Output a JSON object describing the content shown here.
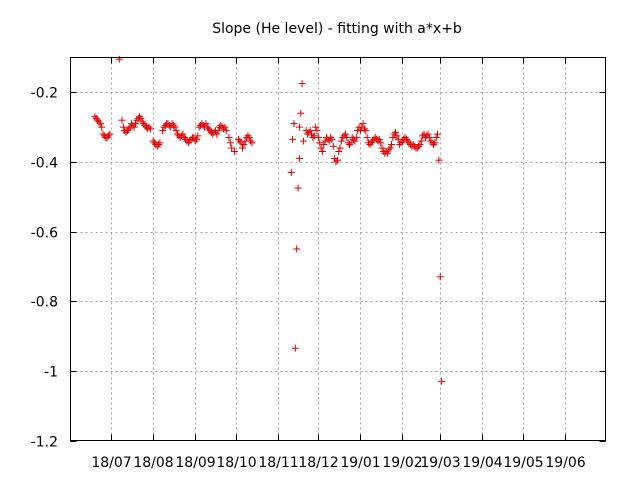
{
  "chart_data": {
    "type": "scatter",
    "title": "Slope (He level) - fitting with a*x+b",
    "xlabel": "",
    "ylabel": "",
    "x_unit": "month",
    "xlim": [
      "2018-06-01",
      "2019-07-01"
    ],
    "ylim": [
      -1.2,
      -0.1
    ],
    "x_ticks": [
      {
        "date": "2018-07-01",
        "label": "18/07"
      },
      {
        "date": "2018-08-01",
        "label": "18/08"
      },
      {
        "date": "2018-09-01",
        "label": "18/09"
      },
      {
        "date": "2018-10-01",
        "label": "18/10"
      },
      {
        "date": "2018-11-01",
        "label": "18/11"
      },
      {
        "date": "2018-12-01",
        "label": "18/12"
      },
      {
        "date": "2019-01-01",
        "label": "19/01"
      },
      {
        "date": "2019-02-01",
        "label": "19/02"
      },
      {
        "date": "2019-03-01",
        "label": "19/03"
      },
      {
        "date": "2019-04-01",
        "label": "19/04"
      },
      {
        "date": "2019-05-01",
        "label": "19/05"
      },
      {
        "date": "2019-06-01",
        "label": "19/06"
      }
    ],
    "y_ticks": [
      {
        "value": -1.2,
        "label": "-1.2"
      },
      {
        "value": -1.0,
        "label": "-1"
      },
      {
        "value": -0.8,
        "label": "-0.8"
      },
      {
        "value": -0.6,
        "label": "-0.6"
      },
      {
        "value": -0.4,
        "label": "-0.4"
      },
      {
        "value": -0.2,
        "label": "-0.2"
      }
    ],
    "grid": true,
    "series": [
      {
        "color": "#e00000",
        "marker": "plus",
        "points": [
          {
            "x": "2018-06-19",
            "y": -0.27
          },
          {
            "x": "2018-06-20",
            "y": -0.275
          },
          {
            "x": "2018-06-21",
            "y": -0.28
          },
          {
            "x": "2018-06-22",
            "y": -0.285
          },
          {
            "x": "2018-06-23",
            "y": -0.29
          },
          {
            "x": "2018-06-24",
            "y": -0.3
          },
          {
            "x": "2018-06-25",
            "y": -0.32
          },
          {
            "x": "2018-06-26",
            "y": -0.325
          },
          {
            "x": "2018-06-27",
            "y": -0.33
          },
          {
            "x": "2018-06-28",
            "y": -0.33
          },
          {
            "x": "2018-06-29",
            "y": -0.325
          },
          {
            "x": "2018-06-30",
            "y": -0.32
          },
          {
            "x": "2018-07-07",
            "y": -0.105
          },
          {
            "x": "2018-07-09",
            "y": -0.28
          },
          {
            "x": "2018-07-10",
            "y": -0.3
          },
          {
            "x": "2018-07-11",
            "y": -0.31
          },
          {
            "x": "2018-07-12",
            "y": -0.315
          },
          {
            "x": "2018-07-13",
            "y": -0.31
          },
          {
            "x": "2018-07-14",
            "y": -0.305
          },
          {
            "x": "2018-07-15",
            "y": -0.3
          },
          {
            "x": "2018-07-16",
            "y": -0.29
          },
          {
            "x": "2018-07-17",
            "y": -0.295
          },
          {
            "x": "2018-07-18",
            "y": -0.3
          },
          {
            "x": "2018-07-19",
            "y": -0.29
          },
          {
            "x": "2018-07-20",
            "y": -0.28
          },
          {
            "x": "2018-07-21",
            "y": -0.275
          },
          {
            "x": "2018-07-22",
            "y": -0.27
          },
          {
            "x": "2018-07-23",
            "y": -0.275
          },
          {
            "x": "2018-07-24",
            "y": -0.285
          },
          {
            "x": "2018-07-25",
            "y": -0.29
          },
          {
            "x": "2018-07-26",
            "y": -0.295
          },
          {
            "x": "2018-07-27",
            "y": -0.3
          },
          {
            "x": "2018-07-28",
            "y": -0.305
          },
          {
            "x": "2018-07-29",
            "y": -0.3
          },
          {
            "x": "2018-07-30",
            "y": -0.305
          },
          {
            "x": "2018-08-01",
            "y": -0.34
          },
          {
            "x": "2018-08-02",
            "y": -0.345
          },
          {
            "x": "2018-08-03",
            "y": -0.35
          },
          {
            "x": "2018-08-04",
            "y": -0.355
          },
          {
            "x": "2018-08-05",
            "y": -0.35
          },
          {
            "x": "2018-08-06",
            "y": -0.345
          },
          {
            "x": "2018-08-08",
            "y": -0.31
          },
          {
            "x": "2018-08-09",
            "y": -0.3
          },
          {
            "x": "2018-08-10",
            "y": -0.295
          },
          {
            "x": "2018-08-11",
            "y": -0.29
          },
          {
            "x": "2018-08-12",
            "y": -0.29
          },
          {
            "x": "2018-08-13",
            "y": -0.295
          },
          {
            "x": "2018-08-14",
            "y": -0.3
          },
          {
            "x": "2018-08-15",
            "y": -0.29
          },
          {
            "x": "2018-08-16",
            "y": -0.295
          },
          {
            "x": "2018-08-17",
            "y": -0.3
          },
          {
            "x": "2018-08-18",
            "y": -0.31
          },
          {
            "x": "2018-08-19",
            "y": -0.32
          },
          {
            "x": "2018-08-20",
            "y": -0.325
          },
          {
            "x": "2018-08-21",
            "y": -0.33
          },
          {
            "x": "2018-08-22",
            "y": -0.325
          },
          {
            "x": "2018-08-23",
            "y": -0.32
          },
          {
            "x": "2018-08-24",
            "y": -0.33
          },
          {
            "x": "2018-08-25",
            "y": -0.335
          },
          {
            "x": "2018-08-26",
            "y": -0.34
          },
          {
            "x": "2018-08-27",
            "y": -0.345
          },
          {
            "x": "2018-08-28",
            "y": -0.34
          },
          {
            "x": "2018-08-29",
            "y": -0.335
          },
          {
            "x": "2018-08-30",
            "y": -0.33
          },
          {
            "x": "2018-08-31",
            "y": -0.33
          },
          {
            "x": "2018-09-01",
            "y": -0.34
          },
          {
            "x": "2018-09-02",
            "y": -0.335
          },
          {
            "x": "2018-09-03",
            "y": -0.325
          },
          {
            "x": "2018-09-04",
            "y": -0.3
          },
          {
            "x": "2018-09-05",
            "y": -0.295
          },
          {
            "x": "2018-09-06",
            "y": -0.29
          },
          {
            "x": "2018-09-07",
            "y": -0.295
          },
          {
            "x": "2018-09-08",
            "y": -0.3
          },
          {
            "x": "2018-09-09",
            "y": -0.29
          },
          {
            "x": "2018-09-10",
            "y": -0.3
          },
          {
            "x": "2018-09-11",
            "y": -0.305
          },
          {
            "x": "2018-09-12",
            "y": -0.31
          },
          {
            "x": "2018-09-13",
            "y": -0.315
          },
          {
            "x": "2018-09-14",
            "y": -0.32
          },
          {
            "x": "2018-09-15",
            "y": -0.315
          },
          {
            "x": "2018-09-16",
            "y": -0.31
          },
          {
            "x": "2018-09-17",
            "y": -0.32
          },
          {
            "x": "2018-09-18",
            "y": -0.31
          },
          {
            "x": "2018-09-19",
            "y": -0.3
          },
          {
            "x": "2018-09-20",
            "y": -0.295
          },
          {
            "x": "2018-09-21",
            "y": -0.3
          },
          {
            "x": "2018-09-22",
            "y": -0.305
          },
          {
            "x": "2018-09-23",
            "y": -0.3
          },
          {
            "x": "2018-09-24",
            "y": -0.31
          },
          {
            "x": "2018-09-26",
            "y": -0.33
          },
          {
            "x": "2018-09-27",
            "y": -0.345
          },
          {
            "x": "2018-09-28",
            "y": -0.36
          },
          {
            "x": "2018-09-30",
            "y": -0.37
          },
          {
            "x": "2018-10-03",
            "y": -0.335
          },
          {
            "x": "2018-10-04",
            "y": -0.34
          },
          {
            "x": "2018-10-05",
            "y": -0.345
          },
          {
            "x": "2018-10-06",
            "y": -0.36
          },
          {
            "x": "2018-10-07",
            "y": -0.35
          },
          {
            "x": "2018-10-08",
            "y": -0.34
          },
          {
            "x": "2018-10-09",
            "y": -0.33
          },
          {
            "x": "2018-10-10",
            "y": -0.325
          },
          {
            "x": "2018-10-11",
            "y": -0.33
          },
          {
            "x": "2018-10-12",
            "y": -0.34
          },
          {
            "x": "2018-10-13",
            "y": -0.345
          },
          {
            "x": "2018-11-11",
            "y": -0.43
          },
          {
            "x": "2018-11-12",
            "y": -0.335
          },
          {
            "x": "2018-11-13",
            "y": -0.29
          },
          {
            "x": "2018-11-14",
            "y": -0.935
          },
          {
            "x": "2018-11-15",
            "y": -0.65
          },
          {
            "x": "2018-11-16",
            "y": -0.475
          },
          {
            "x": "2018-11-17",
            "y": -0.39
          },
          {
            "x": "2018-11-17",
            "y": -0.3
          },
          {
            "x": "2018-11-18",
            "y": -0.26
          },
          {
            "x": "2018-11-19",
            "y": -0.175
          },
          {
            "x": "2018-11-20",
            "y": -0.34
          },
          {
            "x": "2018-11-22",
            "y": -0.31
          },
          {
            "x": "2018-11-23",
            "y": -0.32
          },
          {
            "x": "2018-11-24",
            "y": -0.315
          },
          {
            "x": "2018-11-25",
            "y": -0.31
          },
          {
            "x": "2018-11-26",
            "y": -0.32
          },
          {
            "x": "2018-11-27",
            "y": -0.33
          },
          {
            "x": "2018-11-28",
            "y": -0.325
          },
          {
            "x": "2018-11-29",
            "y": -0.3
          },
          {
            "x": "2018-11-30",
            "y": -0.31
          },
          {
            "x": "2018-12-01",
            "y": -0.33
          },
          {
            "x": "2018-12-02",
            "y": -0.345
          },
          {
            "x": "2018-12-03",
            "y": -0.36
          },
          {
            "x": "2018-12-04",
            "y": -0.37
          },
          {
            "x": "2018-12-05",
            "y": -0.35
          },
          {
            "x": "2018-12-06",
            "y": -0.34
          },
          {
            "x": "2018-12-07",
            "y": -0.33
          },
          {
            "x": "2018-12-08",
            "y": -0.335
          },
          {
            "x": "2018-12-09",
            "y": -0.34
          },
          {
            "x": "2018-12-10",
            "y": -0.33
          },
          {
            "x": "2018-12-11",
            "y": -0.335
          },
          {
            "x": "2018-12-12",
            "y": -0.355
          },
          {
            "x": "2018-12-13",
            "y": -0.39
          },
          {
            "x": "2018-12-14",
            "y": -0.4
          },
          {
            "x": "2018-12-15",
            "y": -0.395
          },
          {
            "x": "2018-12-16",
            "y": -0.37
          },
          {
            "x": "2018-12-17",
            "y": -0.36
          },
          {
            "x": "2018-12-18",
            "y": -0.34
          },
          {
            "x": "2018-12-19",
            "y": -0.33
          },
          {
            "x": "2018-12-20",
            "y": -0.325
          },
          {
            "x": "2018-12-21",
            "y": -0.32
          },
          {
            "x": "2018-12-22",
            "y": -0.33
          },
          {
            "x": "2018-12-23",
            "y": -0.345
          },
          {
            "x": "2018-12-24",
            "y": -0.35
          },
          {
            "x": "2018-12-25",
            "y": -0.345
          },
          {
            "x": "2018-12-26",
            "y": -0.33
          },
          {
            "x": "2018-12-27",
            "y": -0.335
          },
          {
            "x": "2018-12-28",
            "y": -0.34
          },
          {
            "x": "2018-12-29",
            "y": -0.33
          },
          {
            "x": "2018-12-30",
            "y": -0.31
          },
          {
            "x": "2018-12-31",
            "y": -0.3
          },
          {
            "x": "2019-01-01",
            "y": -0.31
          },
          {
            "x": "2019-01-02",
            "y": -0.3
          },
          {
            "x": "2019-01-03",
            "y": -0.29
          },
          {
            "x": "2019-01-04",
            "y": -0.305
          },
          {
            "x": "2019-01-05",
            "y": -0.31
          },
          {
            "x": "2019-01-06",
            "y": -0.33
          },
          {
            "x": "2019-01-07",
            "y": -0.345
          },
          {
            "x": "2019-01-08",
            "y": -0.35
          },
          {
            "x": "2019-01-09",
            "y": -0.345
          },
          {
            "x": "2019-01-10",
            "y": -0.34
          },
          {
            "x": "2019-01-11",
            "y": -0.335
          },
          {
            "x": "2019-01-12",
            "y": -0.33
          },
          {
            "x": "2019-01-13",
            "y": -0.335
          },
          {
            "x": "2019-01-14",
            "y": -0.34
          },
          {
            "x": "2019-01-15",
            "y": -0.335
          },
          {
            "x": "2019-01-16",
            "y": -0.345
          },
          {
            "x": "2019-01-17",
            "y": -0.36
          },
          {
            "x": "2019-01-18",
            "y": -0.37
          },
          {
            "x": "2019-01-19",
            "y": -0.375
          },
          {
            "x": "2019-01-20",
            "y": -0.37
          },
          {
            "x": "2019-01-21",
            "y": -0.375
          },
          {
            "x": "2019-01-22",
            "y": -0.365
          },
          {
            "x": "2019-01-23",
            "y": -0.36
          },
          {
            "x": "2019-01-24",
            "y": -0.35
          },
          {
            "x": "2019-01-25",
            "y": -0.33
          },
          {
            "x": "2019-01-26",
            "y": -0.32
          },
          {
            "x": "2019-01-27",
            "y": -0.315
          },
          {
            "x": "2019-01-28",
            "y": -0.325
          },
          {
            "x": "2019-01-29",
            "y": -0.335
          },
          {
            "x": "2019-01-30",
            "y": -0.35
          },
          {
            "x": "2019-01-31",
            "y": -0.345
          },
          {
            "x": "2019-02-01",
            "y": -0.34
          },
          {
            "x": "2019-02-02",
            "y": -0.335
          },
          {
            "x": "2019-02-03",
            "y": -0.33
          },
          {
            "x": "2019-02-04",
            "y": -0.335
          },
          {
            "x": "2019-02-05",
            "y": -0.34
          },
          {
            "x": "2019-02-06",
            "y": -0.345
          },
          {
            "x": "2019-02-07",
            "y": -0.35
          },
          {
            "x": "2019-02-08",
            "y": -0.355
          },
          {
            "x": "2019-02-09",
            "y": -0.35
          },
          {
            "x": "2019-02-10",
            "y": -0.355
          },
          {
            "x": "2019-02-11",
            "y": -0.36
          },
          {
            "x": "2019-02-12",
            "y": -0.36
          },
          {
            "x": "2019-02-13",
            "y": -0.355
          },
          {
            "x": "2019-02-14",
            "y": -0.35
          },
          {
            "x": "2019-02-15",
            "y": -0.34
          },
          {
            "x": "2019-02-16",
            "y": -0.325
          },
          {
            "x": "2019-02-17",
            "y": -0.32
          },
          {
            "x": "2019-02-18",
            "y": -0.33
          },
          {
            "x": "2019-02-19",
            "y": -0.325
          },
          {
            "x": "2019-02-20",
            "y": -0.32
          },
          {
            "x": "2019-02-21",
            "y": -0.33
          },
          {
            "x": "2019-02-22",
            "y": -0.34
          },
          {
            "x": "2019-02-23",
            "y": -0.345
          },
          {
            "x": "2019-02-24",
            "y": -0.35
          },
          {
            "x": "2019-02-25",
            "y": -0.345
          },
          {
            "x": "2019-02-26",
            "y": -0.33
          },
          {
            "x": "2019-02-27",
            "y": -0.32
          },
          {
            "x": "2019-02-28",
            "y": -0.395
          },
          {
            "x": "2019-03-01",
            "y": -0.73
          },
          {
            "x": "2019-03-02",
            "y": -1.03
          }
        ]
      }
    ]
  }
}
